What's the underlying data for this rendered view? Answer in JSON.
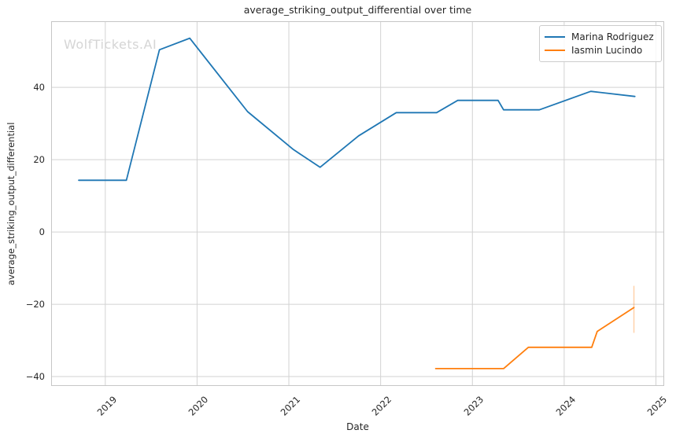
{
  "watermark": "WolfTickets.AI",
  "colors": {
    "blue": "#1f77b4",
    "orange": "#ff7f0e",
    "grid": "#d2d2d2",
    "spine": "#c6c6c6",
    "text": "#262626",
    "watermark": "#d5d5d5"
  },
  "chart_data": {
    "type": "line",
    "title": "average_striking_output_differential over time",
    "xlabel": "Date",
    "ylabel": "average_striking_output_differential",
    "xlim": [
      2018.41,
      2025.09
    ],
    "ylim": [
      -42.6,
      58.3
    ],
    "x_ticks": [
      2019,
      2020,
      2021,
      2022,
      2023,
      2024,
      2025
    ],
    "y_ticks": [
      40,
      20,
      0,
      -20,
      -40
    ],
    "grid": true,
    "legend_position": "upper right",
    "series": [
      {
        "name": "Marina Rodriguez",
        "color": "#1f77b4",
        "points": [
          [
            2018.71,
            14.3
          ],
          [
            2019.23,
            14.3
          ],
          [
            2019.59,
            50.4
          ],
          [
            2019.92,
            53.6
          ],
          [
            2020.55,
            33.3
          ],
          [
            2021.05,
            22.8
          ],
          [
            2021.34,
            17.9
          ],
          [
            2021.76,
            26.6
          ],
          [
            2022.17,
            33.0
          ],
          [
            2022.61,
            33.0
          ],
          [
            2022.84,
            36.4
          ],
          [
            2023.28,
            36.4
          ],
          [
            2023.34,
            33.8
          ],
          [
            2023.73,
            33.8
          ],
          [
            2024.29,
            38.9
          ],
          [
            2024.77,
            37.5
          ]
        ]
      },
      {
        "name": "Iasmin Lucindo",
        "color": "#ff7f0e",
        "points": [
          [
            2022.6,
            -37.8
          ],
          [
            2023.34,
            -37.8
          ],
          [
            2023.61,
            -31.9
          ],
          [
            2024.3,
            -31.9
          ],
          [
            2024.36,
            -27.5
          ],
          [
            2024.76,
            -20.9
          ]
        ],
        "error_bar": {
          "x": 2024.76,
          "y_min": -27.9,
          "y_max": -14.9
        }
      }
    ]
  }
}
